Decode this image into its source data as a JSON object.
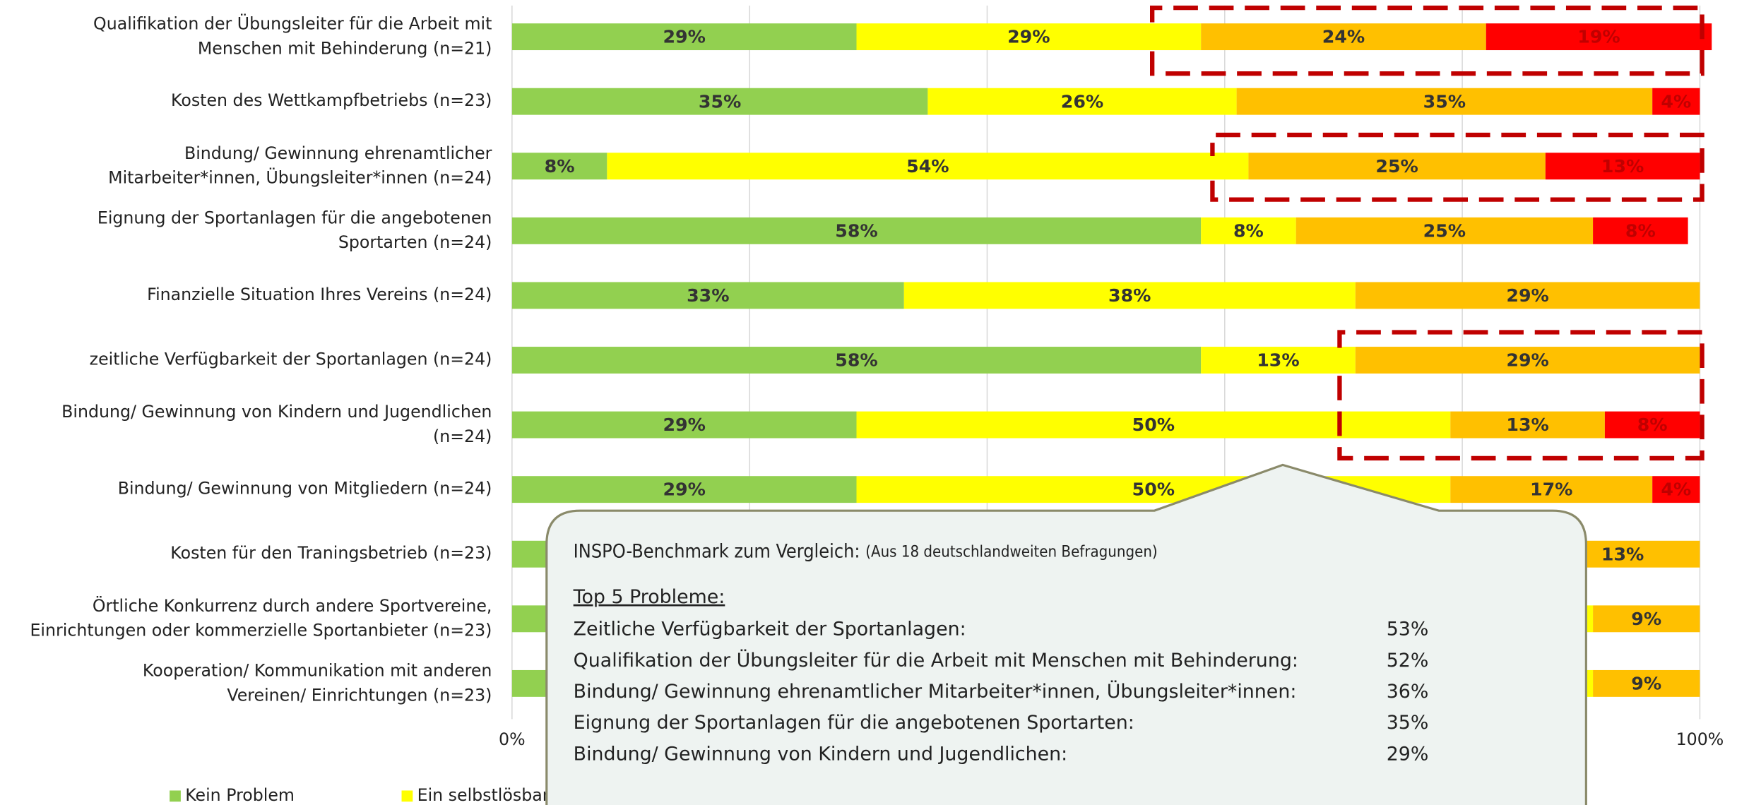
{
  "chart_data": {
    "type": "stacked-bar-horizontal",
    "categories": [
      "Qualifikation der Übungsleiter für die Arbeit mit\nMenschen mit Behinderung (n=21)",
      "Kosten des Wettkampfbetriebs (n=23)",
      "Bindung/ Gewinnung ehrenamtlicher\nMitarbeiter*innen, Übungsleiter*innen (n=24)",
      "Eignung der Sportanlagen für die angebotenen\nSportarten (n=24)",
      "Finanzielle Situation Ihres Vereins (n=24)",
      "zeitliche Verfügbarkeit der Sportanlagen (n=24)",
      "Bindung/ Gewinnung von Kindern und Jugendlichen\n(n=24)",
      "Bindung/ Gewinnung von Mitgliedern (n=24)",
      "Kosten für den Traningsbetrieb (n=23)",
      "Örtliche Konkurrenz durch andere Sportvereine,\nEinrichtungen oder kommerzielle Sportanbieter (n=23)",
      "Kooperation/ Kommunikation mit anderen\nVereinen/ Einrichtungen (n=23)"
    ],
    "series": [
      {
        "name": "Kein Problem",
        "color": "#92d050",
        "label_color": "#333333",
        "values": [
          29,
          35,
          8,
          58,
          33,
          58,
          29,
          29,
          39,
          35,
          43
        ],
        "value_labels": [
          "29%",
          "35%",
          "8%",
          "58%",
          "33%",
          "58%",
          "29%",
          "29%",
          null,
          null,
          null
        ]
      },
      {
        "name": "Ein selbstlösbare",
        "color": "#ffff00",
        "label_color": "#333333",
        "values": [
          29,
          26,
          54,
          8,
          38,
          13,
          50,
          50,
          48,
          56,
          48
        ],
        "value_labels": [
          "29%",
          "26%",
          "54%",
          "8%",
          "38%",
          "13%",
          "50%",
          "50%",
          null,
          null,
          null
        ]
      },
      {
        "color": "#ffc000",
        "label_color": "#333333",
        "values": [
          24,
          35,
          25,
          25,
          29,
          29,
          13,
          17,
          13,
          9,
          9
        ],
        "value_labels": [
          "24%",
          "35%",
          "25%",
          "25%",
          "29%",
          "29%",
          "13%",
          "17%",
          "13%",
          "9%",
          "9%"
        ]
      },
      {
        "color": "#ff0000",
        "label_color": "#c00000",
        "values": [
          19,
          4,
          13,
          8,
          null,
          null,
          8,
          4,
          null,
          null,
          null
        ],
        "value_labels": [
          "19%",
          "4%",
          "13%",
          "8%",
          null,
          null,
          "8%",
          "4%",
          null,
          null,
          null
        ]
      }
    ],
    "xlim": [
      0,
      100
    ],
    "xticks": [
      {
        "value": 0,
        "label": "0%"
      },
      {
        "value": 100,
        "label": "100%"
      }
    ],
    "grid_values": [
      0,
      20,
      40,
      60,
      80,
      100
    ],
    "grid": true
  },
  "callout": {
    "title": "INSPO-Benchmark zum Vergleich:",
    "subtitle": "(Aus 18 deutschlandweiten Befragungen)",
    "heading": "Top 5 Probleme:",
    "items": [
      {
        "label": "Zeitliche Verfügbarkeit der Sportanlagen:",
        "value": "53%"
      },
      {
        "label": "Qualifikation der Übungsleiter für die Arbeit mit Menschen mit Behinderung:",
        "value": "52%"
      },
      {
        "label": "Bindung/ Gewinnung ehrenamtlicher Mitarbeiter*innen, Übungsleiter*innen:",
        "value": "36%"
      },
      {
        "label": "Eignung der Sportanlagen für die angebotenen Sportarten:",
        "value": "35%"
      },
      {
        "label": "Bindung/ Gewinnung von Kindern und Jugendlichen:",
        "value": "29%"
      }
    ]
  }
}
